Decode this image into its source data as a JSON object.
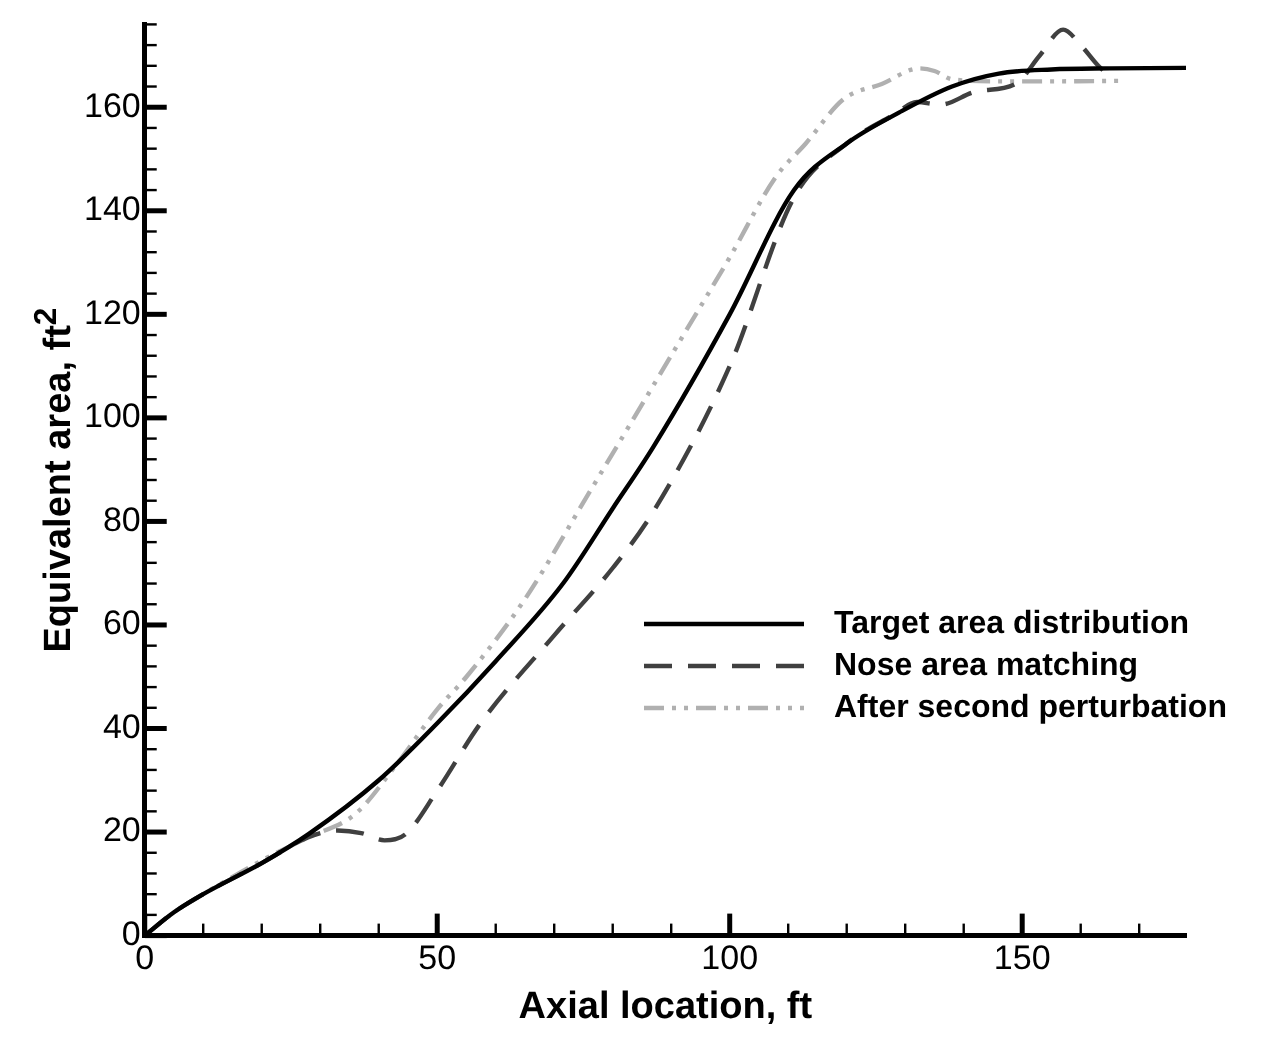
{
  "chart_data": {
    "type": "line",
    "xlabel": "Axial location, ft",
    "ylabel": "Equivalent area, ft$^{2}$",
    "xlim": [
      0,
      178
    ],
    "ylim": [
      0,
      176
    ],
    "xticks": [
      0,
      {
        "value": 10,
        "label": null
      },
      {
        "value": 20,
        "label": null
      },
      {
        "value": 30,
        "label": null
      },
      {
        "value": 40,
        "label": null
      },
      50,
      {
        "value": 60,
        "label": null
      },
      {
        "value": 70,
        "label": null
      },
      {
        "value": 80,
        "label": null
      },
      {
        "value": 90,
        "label": null
      },
      100,
      {
        "value": 110,
        "label": null
      },
      {
        "value": 120,
        "label": null
      },
      {
        "value": 130,
        "label": null
      },
      {
        "value": 140,
        "label": null
      },
      150,
      {
        "value": 160,
        "label": null
      },
      {
        "value": 170,
        "label": null
      }
    ],
    "yticks": [
      0,
      {
        "value": 4,
        "label": null
      },
      {
        "value": 8,
        "label": null
      },
      {
        "value": 12,
        "label": null
      },
      {
        "value": 16,
        "label": null
      },
      20,
      {
        "value": 24,
        "label": null
      },
      {
        "value": 28,
        "label": null
      },
      {
        "value": 32,
        "label": null
      },
      {
        "value": 36,
        "label": null
      },
      40,
      {
        "value": 44,
        "label": null
      },
      {
        "value": 48,
        "label": null
      },
      {
        "value": 52,
        "label": null
      },
      {
        "value": 56,
        "label": null
      },
      60,
      {
        "value": 64,
        "label": null
      },
      {
        "value": 68,
        "label": null
      },
      {
        "value": 72,
        "label": null
      },
      {
        "value": 76,
        "label": null
      },
      80,
      {
        "value": 84,
        "label": null
      },
      {
        "value": 88,
        "label": null
      },
      {
        "value": 92,
        "label": null
      },
      {
        "value": 96,
        "label": null
      },
      100,
      {
        "value": 104,
        "label": null
      },
      {
        "value": 108,
        "label": null
      },
      {
        "value": 112,
        "label": null
      },
      {
        "value": 116,
        "label": null
      },
      120,
      {
        "value": 124,
        "label": null
      },
      {
        "value": 128,
        "label": null
      },
      {
        "value": 132,
        "label": null
      },
      {
        "value": 136,
        "label": null
      },
      140,
      {
        "value": 144,
        "label": null
      },
      {
        "value": 148,
        "label": null
      },
      {
        "value": 152,
        "label": null
      },
      {
        "value": 156,
        "label": null
      },
      160,
      {
        "value": 164,
        "label": null
      },
      {
        "value": 168,
        "label": null
      },
      {
        "value": 172,
        "label": null
      },
      {
        "value": 176,
        "label": null
      }
    ],
    "grid": false,
    "legend": "right",
    "marker": "none",
    "series": [
      {
        "name": "Target area distribution",
        "color": "#000000",
        "line_style": "solid",
        "x": [
          0,
          5,
          10,
          20,
          28,
          40,
          50,
          60,
          71.5,
          80,
          87,
          100,
          111,
          120,
          129,
          138,
          146,
          155,
          165,
          178
        ],
        "values": [
          0,
          4.5,
          8,
          14,
          19.6,
          30,
          41,
          53,
          68,
          82.5,
          94.5,
          120,
          144,
          153,
          159,
          164,
          166.5,
          167.3,
          167.5,
          167.6
        ]
      },
      {
        "name": "Nose area matching",
        "color": "#404040",
        "line_style": "dashed",
        "x": [
          0,
          5,
          10,
          20,
          28,
          33,
          37,
          41,
          44.6,
          50,
          57.4,
          70,
          80,
          87,
          100,
          111,
          120,
          128,
          132,
          136,
          142,
          149,
          153,
          157,
          160,
          163,
          165
        ],
        "values": [
          0,
          4.5,
          8,
          14,
          19,
          20.3,
          19.8,
          18.4,
          19.6,
          28,
          41,
          58,
          71,
          82,
          110,
          142.6,
          153,
          158.5,
          161,
          160.5,
          163,
          164.6,
          170,
          175,
          172,
          168,
          166
        ]
      },
      {
        "name": "After second perturbation",
        "color": "#b0b0b0",
        "line_style": "dotted",
        "x": [
          0,
          5,
          10,
          20,
          28,
          36,
          43,
          50,
          55,
          65,
          76,
          86.7,
          91.4,
          100,
          107.8,
          113,
          119.5,
          126,
          132.4,
          135,
          138,
          146,
          155,
          167.5
        ],
        "values": [
          0,
          4.5,
          8,
          14.5,
          19,
          23.5,
          33,
          43.7,
          50,
          65,
          85.6,
          105.8,
          114.7,
          131,
          146.4,
          153,
          161.6,
          164.5,
          167.5,
          167,
          165.4,
          165,
          165,
          165.1
        ]
      }
    ]
  }
}
